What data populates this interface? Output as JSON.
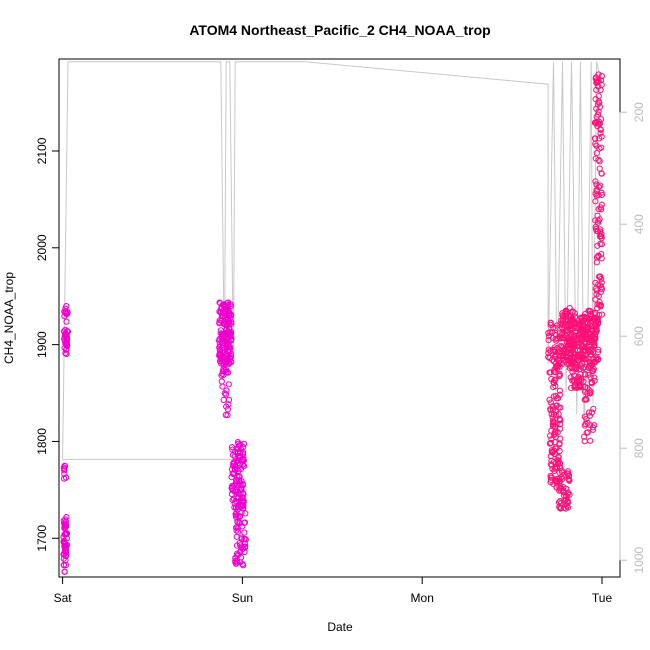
{
  "chart_data": {
    "type": "scatter",
    "title": "ATOM4 Northeast_Pacific_2 CH4_NOAA_trop",
    "xlabel": "Date",
    "ylabel": "CH4_NOAA_trop",
    "xlim": [
      -0.02,
      3.1
    ],
    "ylim": [
      1660,
      2195
    ],
    "x_ticks": [
      {
        "value": 0,
        "label": "Sat"
      },
      {
        "value": 1,
        "label": "Sun"
      },
      {
        "value": 2,
        "label": "Mon"
      },
      {
        "value": 3,
        "label": "Tue"
      }
    ],
    "y_ticks": [
      1700,
      1800,
      1900,
      2000,
      2100
    ],
    "secondary_axis": {
      "side": "right",
      "reversed": true,
      "ticks": [
        200,
        400,
        600,
        800,
        1000
      ],
      "lim": [
        105,
        1030
      ],
      "color": "#bdbdbd"
    },
    "colors": {
      "points_early": "#ee00cc",
      "points_late": "#ff1177",
      "pressure_line": "#c8c8c8"
    },
    "clusters": [
      {
        "x": [
          0.005,
          0.03
        ],
        "y": [
          1890,
          1940
        ],
        "n": 35
      },
      {
        "x": [
          0.005,
          0.025
        ],
        "y": [
          1665,
          1722
        ],
        "n": 50
      },
      {
        "x": [
          0.005,
          0.02
        ],
        "y": [
          1757,
          1775
        ],
        "n": 8
      },
      {
        "x": [
          0.87,
          0.94
        ],
        "y": [
          1880,
          1944
        ],
        "n": 160
      },
      {
        "x": [
          0.88,
          0.93
        ],
        "y": [
          1826,
          1880
        ],
        "n": 25
      },
      {
        "x": [
          0.94,
          1.01
        ],
        "y": [
          1730,
          1800
        ],
        "n": 110
      },
      {
        "x": [
          0.96,
          1.02
        ],
        "y": [
          1672,
          1740
        ],
        "n": 60
      },
      {
        "x": [
          2.7,
          2.77
        ],
        "y": [
          1840,
          1925
        ],
        "n": 70
      },
      {
        "x": [
          2.71,
          2.77
        ],
        "y": [
          1752,
          1840
        ],
        "n": 90
      },
      {
        "x": [
          2.76,
          2.82
        ],
        "y": [
          1730,
          1770
        ],
        "n": 50
      },
      {
        "x": [
          2.77,
          2.85
        ],
        "y": [
          1880,
          1940
        ],
        "n": 130
      },
      {
        "x": [
          2.82,
          2.9
        ],
        "y": [
          1855,
          1925
        ],
        "n": 110
      },
      {
        "x": [
          2.88,
          2.98
        ],
        "y": [
          1880,
          1935
        ],
        "n": 150
      },
      {
        "x": [
          2.9,
          2.96
        ],
        "y": [
          1800,
          1880
        ],
        "n": 50
      },
      {
        "x": [
          2.96,
          3.0
        ],
        "y": [
          1930,
          2180
        ],
        "n": 120
      }
    ],
    "pressure_series": [
      {
        "x": 0.0,
        "p": 820
      },
      {
        "x": 0.02,
        "p": 350
      },
      {
        "x": 0.03,
        "p": 110
      },
      {
        "x": 0.88,
        "p": 110
      },
      {
        "x": 0.9,
        "p": 650
      },
      {
        "x": 0.91,
        "p": 110
      },
      {
        "x": 0.93,
        "p": 110
      },
      {
        "x": 0.95,
        "p": 650
      },
      {
        "x": 0.96,
        "p": 110
      },
      {
        "x": 1.35,
        "p": 110
      },
      {
        "x": 2.7,
        "p": 150
      },
      {
        "x": 2.7,
        "p": 650
      },
      {
        "x": 2.73,
        "p": 110
      },
      {
        "x": 2.75,
        "p": 680
      },
      {
        "x": 2.78,
        "p": 110
      },
      {
        "x": 2.8,
        "p": 700
      },
      {
        "x": 2.83,
        "p": 110
      },
      {
        "x": 2.86,
        "p": 740
      },
      {
        "x": 2.88,
        "p": 110
      },
      {
        "x": 2.9,
        "p": 760
      },
      {
        "x": 2.92,
        "p": 600
      },
      {
        "x": 2.94,
        "p": 110
      },
      {
        "x": 2.95,
        "p": 720
      },
      {
        "x": 2.97,
        "p": 110
      },
      {
        "x": 3.0,
        "p": 150
      }
    ],
    "pressure_segment_low": [
      {
        "x": 0.0,
        "p": 820
      },
      {
        "x": 1.0,
        "p": 820
      }
    ]
  }
}
